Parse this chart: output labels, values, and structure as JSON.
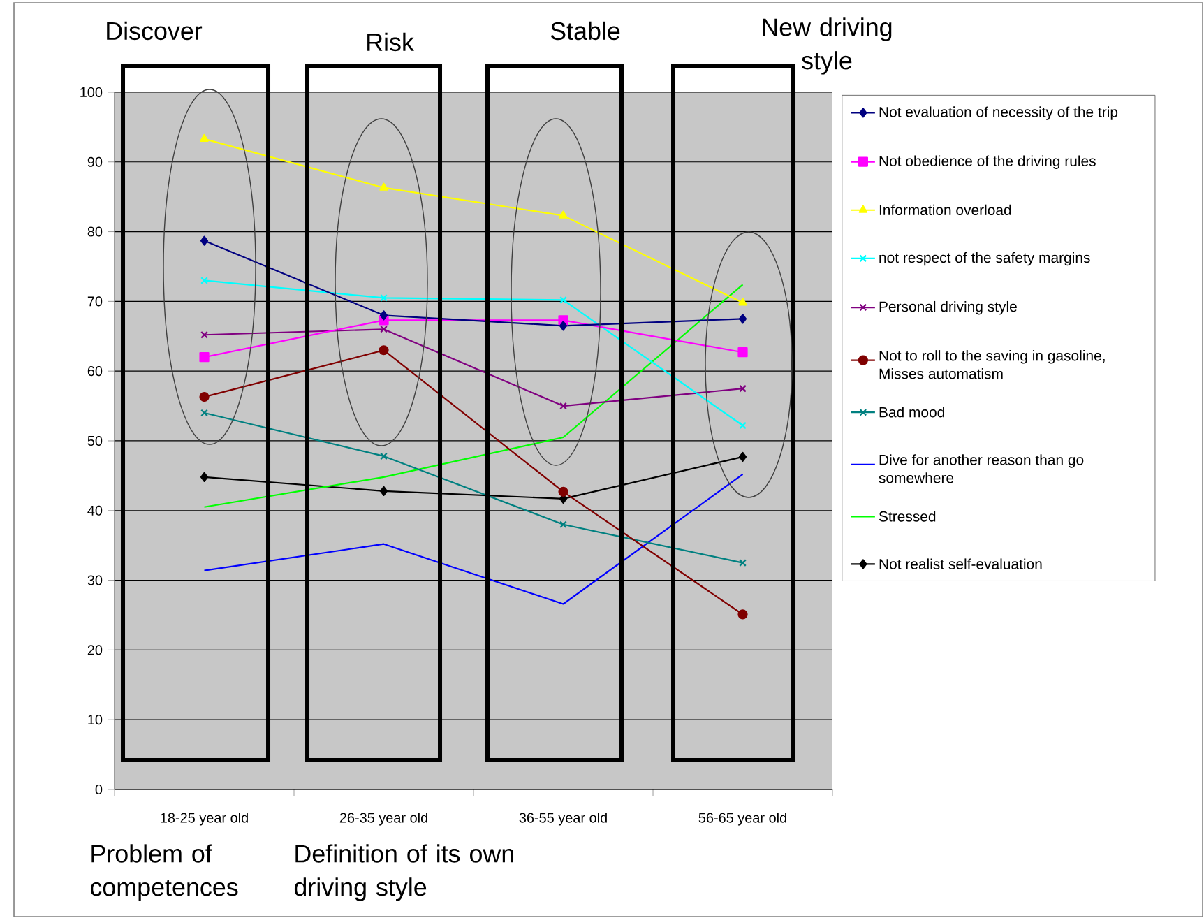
{
  "chart_data": {
    "type": "line",
    "categories": [
      "18-25 year old",
      "26-35 year old",
      "36-55 year old",
      "56-65 year old"
    ],
    "series": [
      {
        "name": "Not evaluation of necessity of the trip",
        "color": "#000080",
        "marker": "diamond",
        "values": [
          78.7,
          68,
          66.5,
          67.5
        ]
      },
      {
        "name": "Not obedience  of the driving rules",
        "color": "#ff00ff",
        "marker": "square",
        "values": [
          62,
          67.3,
          67.3,
          62.7
        ]
      },
      {
        "name": "Information overload",
        "color": "#ffff00",
        "marker": "triangle",
        "values": [
          93.3,
          86.3,
          82.3,
          69.8
        ]
      },
      {
        "name": "not respect of the safety margins",
        "color": "#00ffff",
        "marker": "cross",
        "values": [
          73,
          70.5,
          70.2,
          52.2
        ]
      },
      {
        "name": "Personal driving style",
        "color": "#800080",
        "marker": "cross",
        "values": [
          65.2,
          66,
          55,
          57.5
        ]
      },
      {
        "name": "Not to roll to the saving in gasoline, Misses automatism",
        "color": "#800000",
        "marker": "circle",
        "values": [
          56.3,
          63,
          42.7,
          25.1
        ]
      },
      {
        "name": "Bad mood",
        "color": "#008080",
        "marker": "cross",
        "values": [
          54,
          47.8,
          38,
          32.5
        ]
      },
      {
        "name": "Dive for another reason than go somewhere",
        "color": "#0000ff",
        "marker": "none",
        "values": [
          31.4,
          35.2,
          26.6,
          45.2
        ]
      },
      {
        "name": "Stressed",
        "color": "#00ff00",
        "marker": "none",
        "values": [
          40.5,
          44.8,
          50.5,
          72.4
        ]
      },
      {
        "name": "Not realist self-evaluation",
        "color": "#000000",
        "marker": "diamond",
        "values": [
          44.8,
          42.8,
          41.7,
          47.7
        ]
      }
    ],
    "ylim": [
      0,
      100
    ],
    "yticks": [
      0,
      10,
      20,
      30,
      40,
      50,
      60,
      70,
      80,
      90,
      100
    ],
    "grid": "y",
    "legend": "right",
    "line_style": "solid",
    "annotations": [
      "Discover",
      "Risk",
      "Stable",
      "New driving style",
      "Problem of competences",
      "Definition of its own driving style"
    ]
  }
}
